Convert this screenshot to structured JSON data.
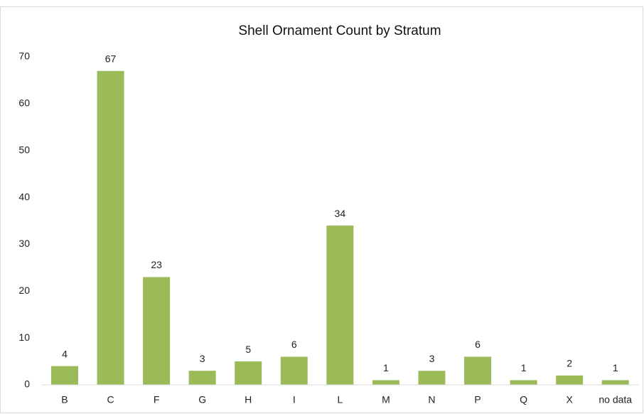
{
  "chart_data": {
    "type": "bar",
    "title": "Shell Ornament Count by Stratum",
    "categories": [
      "B",
      "C",
      "F",
      "G",
      "H",
      "I",
      "L",
      "M",
      "N",
      "P",
      "Q",
      "X",
      "no data"
    ],
    "values": [
      4,
      67,
      23,
      3,
      5,
      6,
      34,
      1,
      3,
      6,
      1,
      2,
      1
    ],
    "color": "#9bbb59",
    "ylim": [
      0,
      70
    ],
    "yticks": [
      0,
      10,
      20,
      30,
      40,
      50,
      60,
      70
    ],
    "grid": false
  }
}
